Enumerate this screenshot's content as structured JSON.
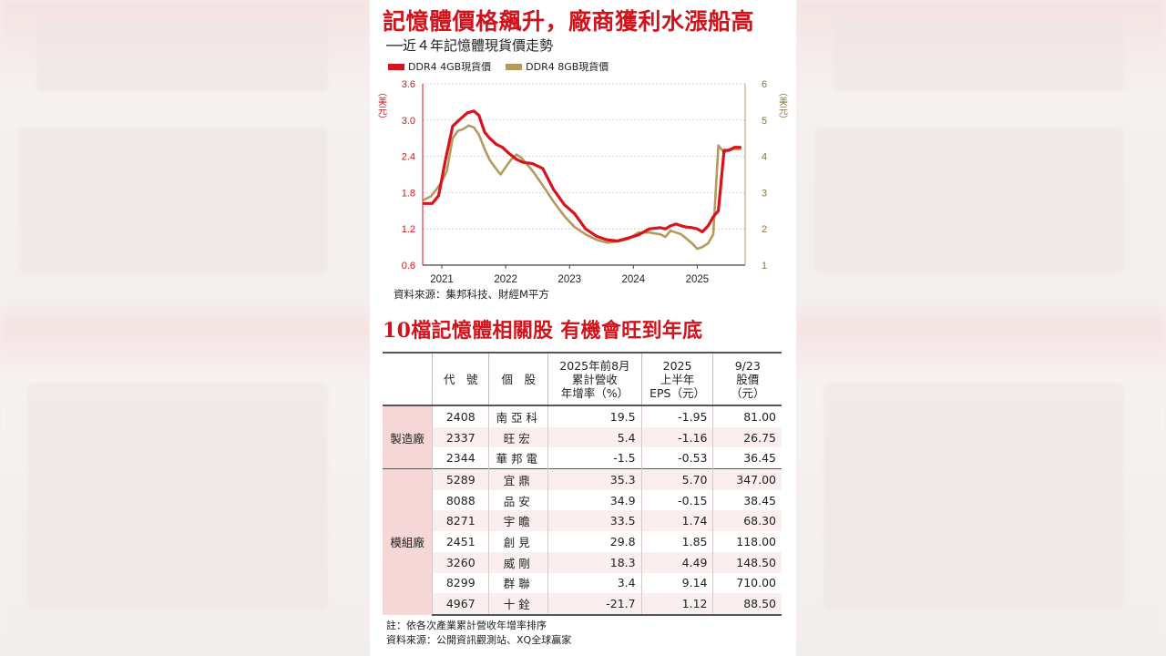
{
  "title": "記憶體價格飆升，廠商獲利水漲船高",
  "subtitle": "──近４年記憶體現貨價走勢",
  "legend": {
    "s1": "DDR4 4GB現貨價",
    "s2": "DDR4 8GB現貨價"
  },
  "colors": {
    "red": "#d7141c",
    "gold": "#b39a5d",
    "accent": "#d3131c"
  },
  "chart_data": {
    "type": "line",
    "title": "記憶體價格飆升，廠商獲利水漲船高",
    "subtitle": "──近４年記憶體現貨價走勢",
    "ylabel_left": "（美元）",
    "ylabel_right": "（美元）",
    "y_left_ticks": [
      "3.6",
      "3.0",
      "2.4",
      "1.8",
      "1.2",
      "0.6"
    ],
    "y_right_ticks": [
      "6",
      "5",
      "4",
      "3",
      "2",
      "1"
    ],
    "ylim_left": [
      0.6,
      3.6
    ],
    "ylim_right": [
      1,
      6
    ],
    "x_ticks": [
      "2021",
      "2022",
      "2023",
      "2024",
      "2025"
    ],
    "x_tick_positions": [
      2021.0,
      2022.0,
      2023.0,
      2024.0,
      2025.0
    ],
    "xlim": [
      2020.7,
      2025.75
    ],
    "grid": "y-dashed",
    "legend_position": "top-left",
    "series": [
      {
        "name": "DDR4 4GB現貨價",
        "axis": "left",
        "x": [
          2020.72,
          2020.85,
          2020.95,
          2021.05,
          2021.17,
          2021.27,
          2021.4,
          2021.5,
          2021.58,
          2021.67,
          2021.75,
          2021.85,
          2021.95,
          2022.05,
          2022.17,
          2022.27,
          2022.42,
          2022.58,
          2022.75,
          2022.92,
          2023.08,
          2023.25,
          2023.42,
          2023.58,
          2023.75,
          2023.92,
          2024.08,
          2024.25,
          2024.42,
          2024.5,
          2024.58,
          2024.67,
          2024.75,
          2024.83,
          2024.92,
          2025.0,
          2025.08,
          2025.17,
          2025.25,
          2025.33,
          2025.42,
          2025.5,
          2025.58,
          2025.67
        ],
        "y": [
          1.62,
          1.62,
          1.75,
          2.3,
          2.9,
          3.0,
          3.12,
          3.15,
          3.08,
          2.8,
          2.7,
          2.6,
          2.55,
          2.45,
          2.35,
          2.3,
          2.28,
          2.2,
          1.85,
          1.6,
          1.45,
          1.2,
          1.08,
          1.02,
          1.0,
          1.05,
          1.1,
          1.2,
          1.22,
          1.2,
          1.25,
          1.28,
          1.25,
          1.23,
          1.22,
          1.2,
          1.15,
          1.25,
          1.4,
          1.5,
          2.5,
          2.5,
          2.55,
          2.55
        ]
      },
      {
        "name": "DDR4 8GB現貨價",
        "axis": "right",
        "x": [
          2020.72,
          2020.83,
          2020.92,
          2021.0,
          2021.08,
          2021.17,
          2021.25,
          2021.33,
          2021.42,
          2021.5,
          2021.58,
          2021.67,
          2021.75,
          2021.83,
          2021.92,
          2022.0,
          2022.08,
          2022.17,
          2022.25,
          2022.42,
          2022.58,
          2022.75,
          2022.92,
          2023.08,
          2023.25,
          2023.42,
          2023.58,
          2023.75,
          2023.92,
          2024.08,
          2024.25,
          2024.42,
          2024.5,
          2024.58,
          2024.75,
          2024.92,
          2025.0,
          2025.08,
          2025.17,
          2025.25,
          2025.33,
          2025.42,
          2025.5,
          2025.58,
          2025.67
        ],
        "y": [
          2.8,
          2.9,
          3.1,
          3.3,
          3.6,
          4.5,
          4.7,
          4.75,
          4.85,
          4.8,
          4.6,
          4.2,
          3.9,
          3.7,
          3.5,
          3.7,
          3.9,
          4.05,
          3.95,
          3.6,
          3.2,
          2.75,
          2.35,
          2.05,
          1.85,
          1.7,
          1.62,
          1.65,
          1.72,
          1.9,
          1.9,
          1.85,
          1.78,
          1.95,
          1.85,
          1.6,
          1.45,
          1.5,
          1.6,
          1.85,
          4.3,
          4.1,
          4.2,
          4.2,
          4.2
        ]
      }
    ]
  },
  "source1": "資料來源：集邦科技、財經M平方",
  "title2": "10檔記憶體相關股  有機會旺到年底",
  "table": {
    "headers": [
      "",
      "代　號",
      "個　股",
      "2025年前8月\n累計營收\n年增率（%）",
      "2025\n上半年\nEPS（元）",
      "9/23\n股價\n（元）"
    ],
    "groups": [
      {
        "name": "製造廠",
        "rows": [
          {
            "code": "2408",
            "name": "南亞科",
            "rev": "19.5",
            "eps": "-1.95",
            "price": "81.00"
          },
          {
            "code": "2337",
            "name": "旺宏",
            "rev": "5.4",
            "eps": "-1.16",
            "price": "26.75"
          },
          {
            "code": "2344",
            "name": "華邦電",
            "rev": "-1.5",
            "eps": "-0.53",
            "price": "36.45"
          }
        ]
      },
      {
        "name": "模組廠",
        "rows": [
          {
            "code": "5289",
            "name": "宜鼎",
            "rev": "35.3",
            "eps": "5.70",
            "price": "347.00"
          },
          {
            "code": "8088",
            "name": "品安",
            "rev": "34.9",
            "eps": "-0.15",
            "price": "38.45"
          },
          {
            "code": "8271",
            "name": "宇瞻",
            "rev": "33.5",
            "eps": "1.74",
            "price": "68.30"
          },
          {
            "code": "2451",
            "name": "創見",
            "rev": "29.8",
            "eps": "1.85",
            "price": "118.00"
          },
          {
            "code": "3260",
            "name": "威剛",
            "rev": "18.3",
            "eps": "4.49",
            "price": "148.50"
          },
          {
            "code": "8299",
            "name": "群聯",
            "rev": "3.4",
            "eps": "9.14",
            "price": "710.00"
          },
          {
            "code": "4967",
            "name": "十銓",
            "rev": "-21.7",
            "eps": "1.12",
            "price": "88.50"
          }
        ]
      }
    ]
  },
  "note": "註：依各次產業累計營收年增率排序",
  "source2": "資料來源：公開資訊觀測站、XQ全球贏家"
}
